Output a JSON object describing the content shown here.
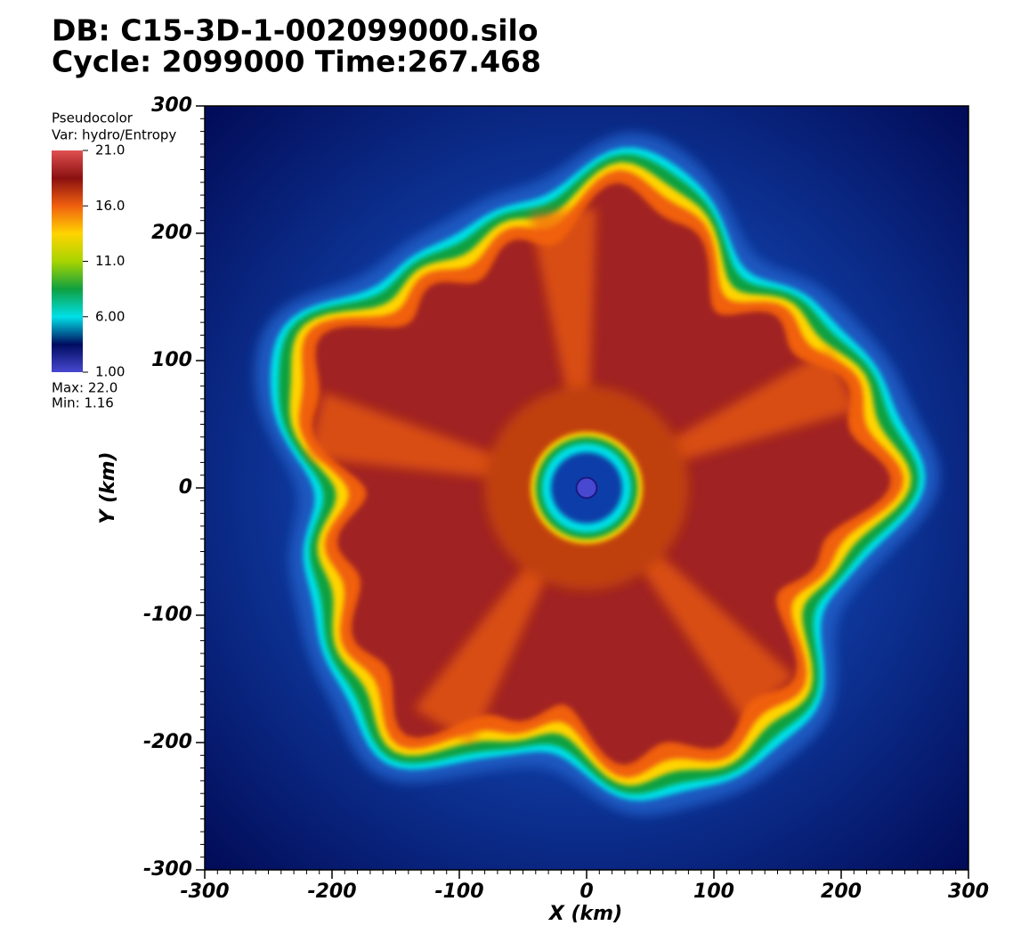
{
  "chart_data": {
    "type": "pseudocolor",
    "title": "DB: C15-3D-1-002099000.silo",
    "subtitle": "Cycle: 2099000  Time:267.468",
    "xlabel": "X (km)",
    "ylabel": "Y (km)",
    "xlim": [
      -300,
      300
    ],
    "ylim": [
      -300,
      300
    ],
    "xticks": [
      -300,
      -200,
      -100,
      0,
      100,
      200,
      300
    ],
    "yticks": [
      -300,
      -200,
      -100,
      0,
      100,
      200,
      300
    ],
    "legend": {
      "title": "Pseudocolor",
      "variable": "Var: hydro/Entropy",
      "range": [
        1,
        21
      ],
      "ticks": [
        {
          "value": 21,
          "label": "21.0"
        },
        {
          "value": 16,
          "label": "16.0"
        },
        {
          "value": 11,
          "label": "11.0"
        },
        {
          "value": 6,
          "label": "6.00"
        },
        {
          "value": 1,
          "label": "1.00"
        }
      ],
      "colormap": [
        "#4848d0",
        "#000c60",
        "#00e0e8",
        "#10a040",
        "#a8d400",
        "#ffd400",
        "#f06010",
        "#8a1010",
        "#e05050"
      ],
      "max": "Max:  22.0",
      "min": "Min:  1.16"
    }
  }
}
